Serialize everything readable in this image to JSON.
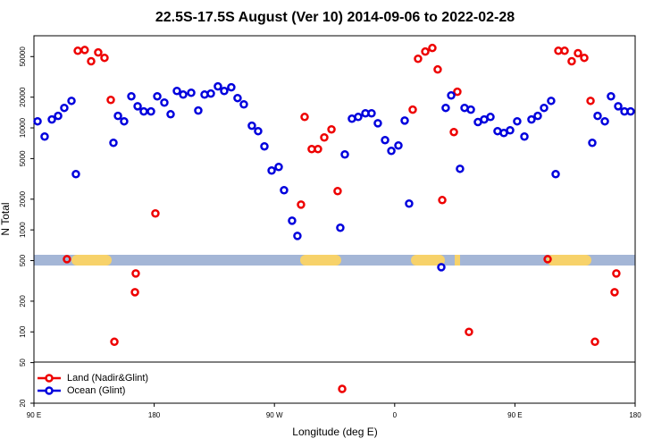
{
  "chart_data": {
    "type": "scatter",
    "title": "22.5S-17.5S August (Ver 10)   2014-09-06 to 2022-02-28",
    "x_label": "Longitude (deg E)",
    "y_label": "N Total",
    "log_y": true,
    "legend": "bottomleft",
    "xlim": [
      90,
      540
    ],
    "xticks": [
      {
        "value": 90,
        "label": "90 E"
      },
      180,
      {
        "value": 270,
        "label": "90 W"
      },
      {
        "value": 360,
        "label": "0"
      },
      {
        "value": 450,
        "label": "90 E"
      },
      {
        "value": 540,
        "label": "180"
      }
    ],
    "ylim": [
      20,
      80000
    ],
    "yticks": [
      20,
      50,
      100,
      200,
      500,
      1000,
      2000,
      5000,
      10000,
      20000,
      50000
    ],
    "series": [
      {
        "name": "Land (Nadir&Glint)",
        "color": "#ee0000",
        "x": [
          114.7,
          122.8,
          128.0,
          132.8,
          138.1,
          142.8,
          147.5,
          150.2,
          165.6,
          166.2,
          180.9,
          289.9,
          292.6,
          297.9,
          302.6,
          307.3,
          312.7,
          317.3,
          320.7,
          373.5,
          377.5,
          382.9,
          388.2,
          392.2,
          395.6,
          404.3,
          406.9,
          415.6,
          474.5,
          482.5,
          487.2,
          492.5,
          497.2,
          501.9,
          506.6,
          509.9,
          524.6,
          525.9
        ],
        "values": [
          516,
          57000,
          58000,
          45000,
          54900,
          48600,
          18800,
          80,
          245,
          374,
          1450,
          1770,
          12800,
          6200,
          6200,
          8060,
          9670,
          2400,
          27.6,
          15100,
          47600,
          56000,
          60700,
          37400,
          1960,
          9100,
          22600,
          100,
          516,
          57000,
          57000,
          45000,
          54000,
          48600,
          18400,
          80,
          245,
          374
        ]
      },
      {
        "name": "Ocean (Glint)",
        "color": "#0000dd",
        "x": [
          92.7,
          98.0,
          103.4,
          108.1,
          112.7,
          118.1,
          121.4,
          149.5,
          152.9,
          157.5,
          162.9,
          167.6,
          172.2,
          177.6,
          182.3,
          187.6,
          192.3,
          197.0,
          201.7,
          207.7,
          213.0,
          217.7,
          222.4,
          227.7,
          232.4,
          237.7,
          242.4,
          247.1,
          253.1,
          257.8,
          262.5,
          267.9,
          273.2,
          277.2,
          283.2,
          287.2,
          319.3,
          322.7,
          328.0,
          332.7,
          338.1,
          342.7,
          347.4,
          352.8,
          357.5,
          362.8,
          367.5,
          370.8,
          394.9,
          398.2,
          402.3,
          408.9,
          412.3,
          417.0,
          422.3,
          427.0,
          431.7,
          437.0,
          441.7,
          446.4,
          451.7,
          457.1,
          462.4,
          467.1,
          471.8,
          477.1,
          480.5,
          507.9,
          511.9,
          517.3,
          521.9,
          527.3,
          532.0,
          536.6
        ],
        "values": [
          11600,
          8220,
          12100,
          13100,
          15700,
          18400,
          3520,
          7140,
          13100,
          11600,
          20400,
          16300,
          14500,
          14500,
          20400,
          17700,
          13600,
          23000,
          21200,
          22100,
          14800,
          21200,
          21700,
          25500,
          23000,
          25000,
          19600,
          17000,
          10500,
          9290,
          6590,
          3820,
          4140,
          2450,
          1230,
          873,
          1050,
          5490,
          12300,
          12800,
          13900,
          13900,
          11100,
          7590,
          5950,
          6720,
          11800,
          1810,
          431,
          15700,
          20800,
          3970,
          15700,
          15100,
          11400,
          12100,
          12800,
          9290,
          8910,
          9470,
          11600,
          8220,
          12100,
          13100,
          15700,
          18400,
          3520,
          7140,
          13100,
          11600,
          20400,
          16300,
          14500,
          14500
        ]
      }
    ]
  }
}
